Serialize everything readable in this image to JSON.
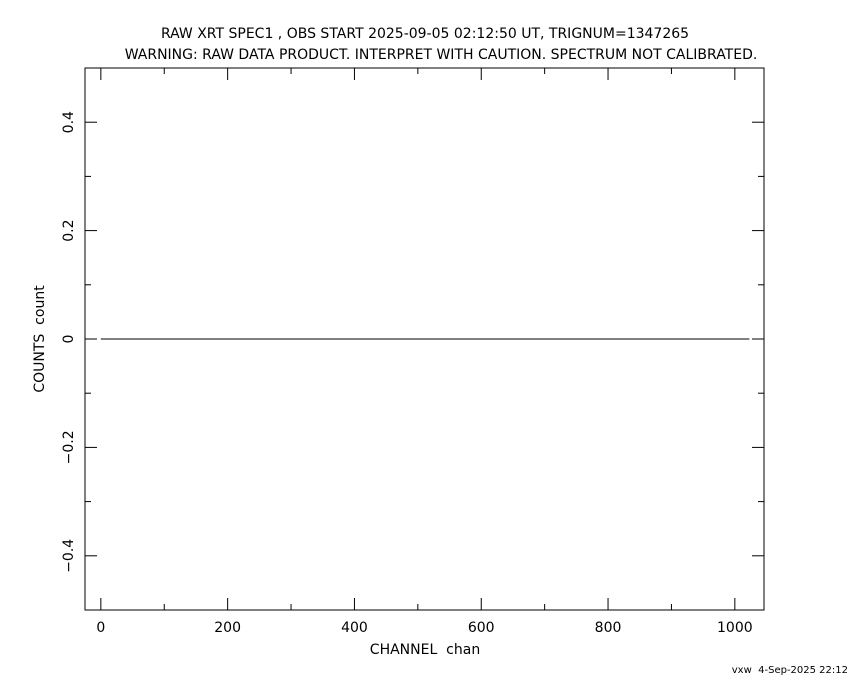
{
  "chart_data": {
    "type": "line",
    "title": "RAW XRT SPEC1 , OBS START 2025-09-05 02:12:50 UT, TRIGNUM=1347265",
    "subtitle": "WARNING: RAW DATA PRODUCT. INTERPRET WITH CAUTION. SPECTRUM NOT CALIBRATED.",
    "xlabel": "CHANNEL  chan",
    "ylabel": "COUNTS  count",
    "xlim": [
      -25,
      1046
    ],
    "ylim": [
      -0.5,
      0.5
    ],
    "xticks": [
      0,
      200,
      400,
      600,
      800,
      1000
    ],
    "xtick_labels": [
      "0",
      "200",
      "400",
      "600",
      "800",
      "1000"
    ],
    "yticks": [
      -0.4,
      -0.2,
      0,
      0.2,
      0.4
    ],
    "ytick_labels": [
      "−0.4",
      "−0.2",
      "0",
      "0.2",
      "0.4"
    ],
    "x_minor_step": 100,
    "y_minor_step": 0.1,
    "grid": false,
    "series": [
      {
        "x": [
          0,
          1023
        ],
        "y": [
          0,
          0
        ],
        "color": "#000000"
      }
    ]
  },
  "footer": "vxw  4-Sep-2025 22:12"
}
